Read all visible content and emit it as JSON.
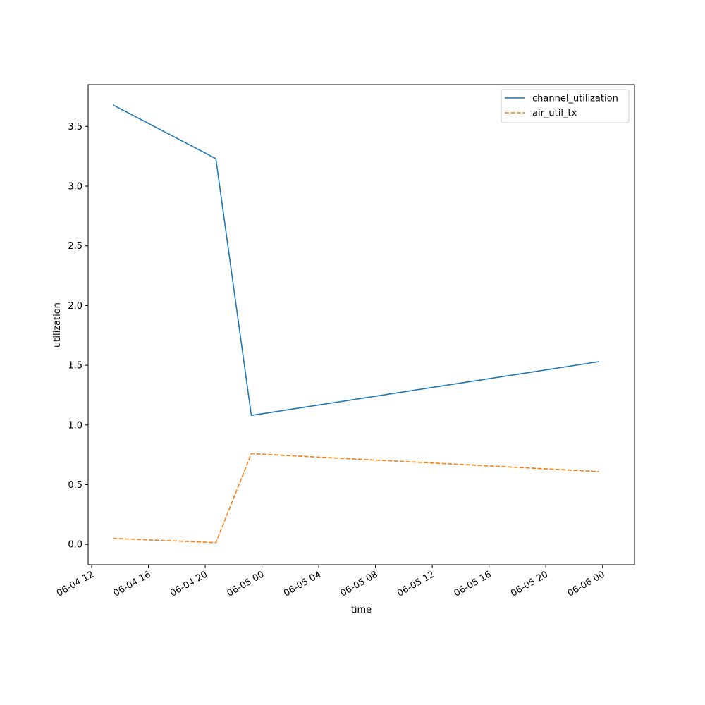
{
  "chart_data": {
    "type": "line",
    "xlabel": "time",
    "ylabel": "utilization",
    "x_axis_type": "datetime",
    "xlim": [
      "2024-06-04T11:45",
      "2024-06-06T02:15"
    ],
    "ylim": [
      -0.17,
      3.85
    ],
    "xticks": [
      {
        "value": "2024-06-04T12:00",
        "label": "06-04 12"
      },
      {
        "value": "2024-06-04T16:00",
        "label": "06-04 16"
      },
      {
        "value": "2024-06-04T20:00",
        "label": "06-04 20"
      },
      {
        "value": "2024-06-05T00:00",
        "label": "06-05 00"
      },
      {
        "value": "2024-06-05T04:00",
        "label": "06-05 04"
      },
      {
        "value": "2024-06-05T08:00",
        "label": "06-05 08"
      },
      {
        "value": "2024-06-05T12:00",
        "label": "06-05 12"
      },
      {
        "value": "2024-06-05T16:00",
        "label": "06-05 16"
      },
      {
        "value": "2024-06-05T20:00",
        "label": "06-05 20"
      },
      {
        "value": "2024-06-06T00:00",
        "label": "06-06 00"
      }
    ],
    "yticks": [
      0.0,
      0.5,
      1.0,
      1.5,
      2.0,
      2.5,
      3.0,
      3.5
    ],
    "ytick_labels": [
      "0.0",
      "0.5",
      "1.0",
      "1.5",
      "2.0",
      "2.5",
      "3.0",
      "3.5"
    ],
    "grid": false,
    "legend_position": "top-right",
    "series": [
      {
        "name": "channel_utilization",
        "color": "#1f77b4",
        "style": "solid",
        "x": [
          "2024-06-04T13:30",
          "2024-06-04T20:45",
          "2024-06-04T23:15",
          "2024-06-05T23:45"
        ],
        "values": [
          3.68,
          3.23,
          1.08,
          1.53
        ]
      },
      {
        "name": "air_util_tx",
        "color": "#ff7f0e",
        "style": "dashed",
        "x": [
          "2024-06-04T13:30",
          "2024-06-04T20:45",
          "2024-06-04T23:15",
          "2024-06-05T23:45"
        ],
        "values": [
          0.05,
          0.015,
          0.76,
          0.61
        ]
      }
    ]
  }
}
